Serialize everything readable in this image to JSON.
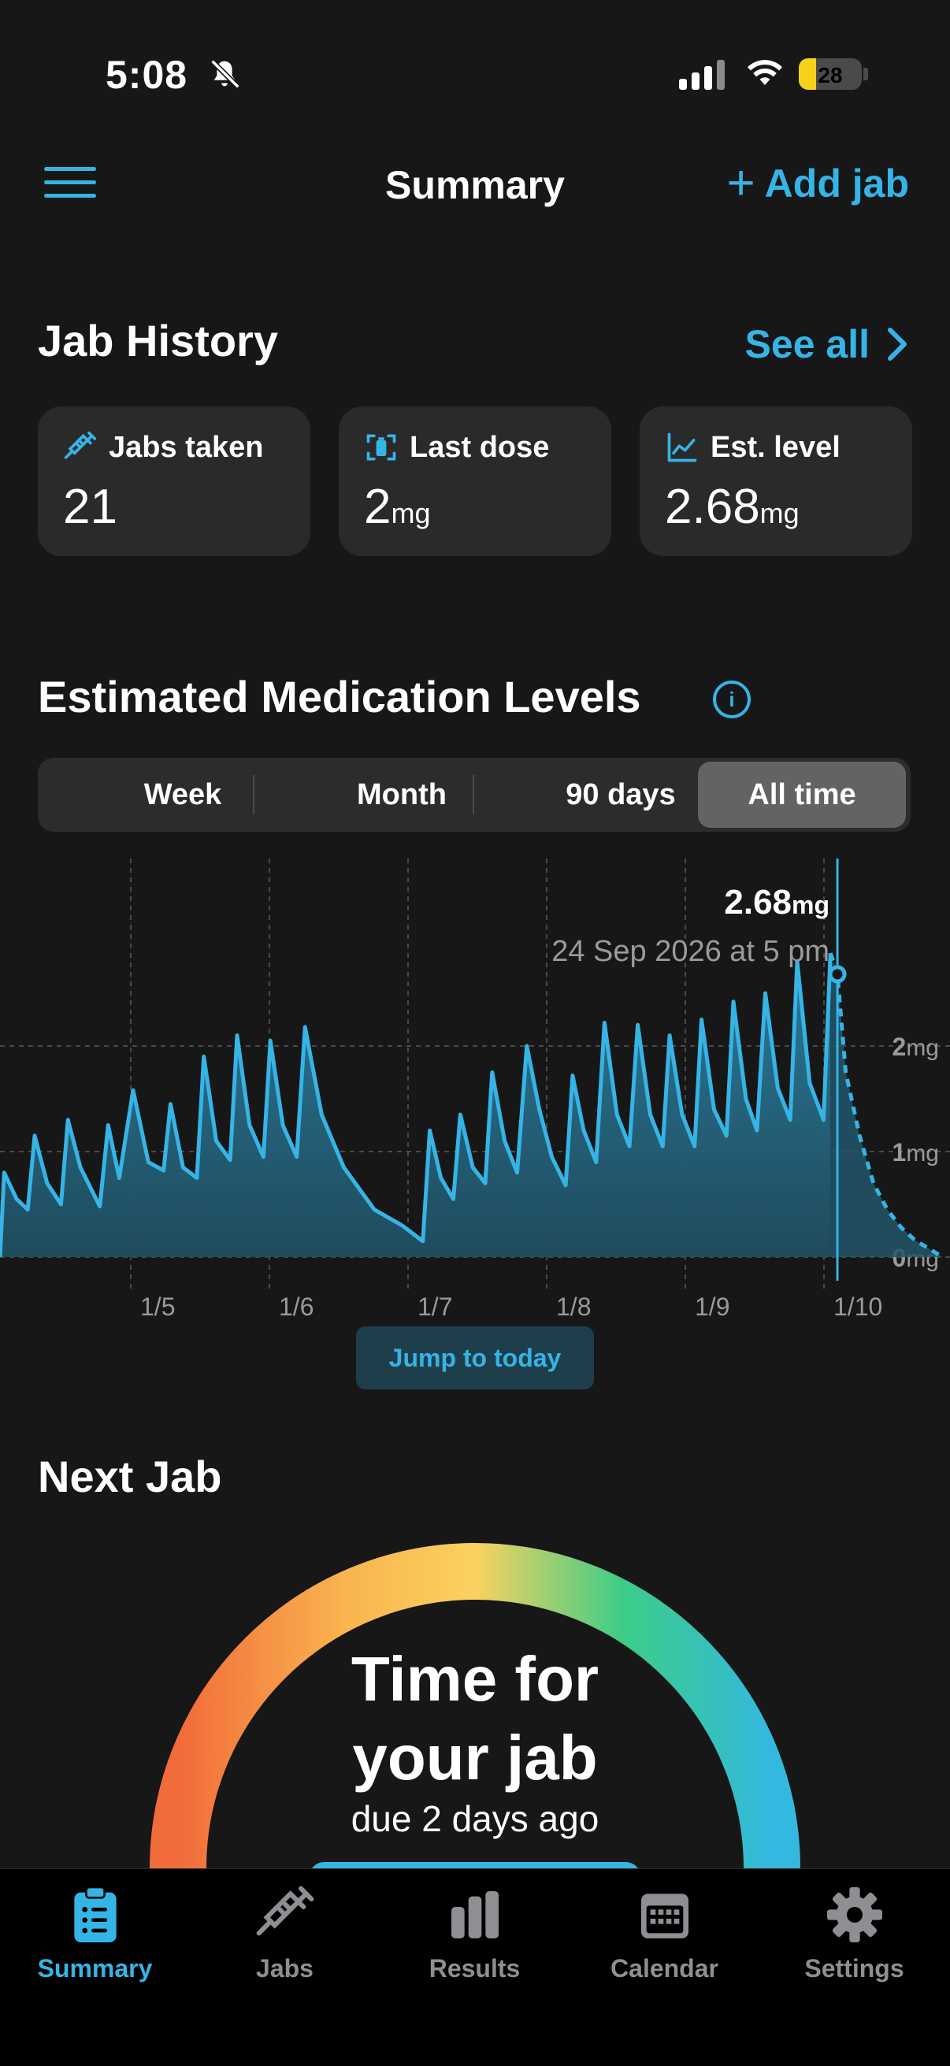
{
  "status_bar": {
    "time": "5:08",
    "battery": "28"
  },
  "nav": {
    "title": "Summary",
    "add_label": "Add jab"
  },
  "jab_history": {
    "title": "Jab History",
    "see_all": "See all",
    "cards": [
      {
        "label": "Jabs taken",
        "value": "21",
        "unit": ""
      },
      {
        "label": "Last dose",
        "value": "2",
        "unit": "mg"
      },
      {
        "label": "Est. level",
        "value": "2.68",
        "unit": "mg"
      }
    ]
  },
  "levels": {
    "title": "Estimated Medication Levels",
    "ranges": [
      "Week",
      "Month",
      "90 days",
      "All time"
    ],
    "selected_range": "All time",
    "jump_label": "Jump to today"
  },
  "chart_data": {
    "type": "area",
    "tooltip": {
      "value": "2.68",
      "unit": "mg",
      "date": "24 Sep 2026 at 5 pm"
    },
    "x_ticks": [
      "1/5",
      "1/6",
      "1/7",
      "1/8",
      "1/9",
      "1/10"
    ],
    "y_ticks": [
      {
        "value": 2,
        "label": "2",
        "unit": "mg"
      },
      {
        "value": 1,
        "label": "1",
        "unit": "mg"
      },
      {
        "value": 0,
        "label": "0",
        "unit": "mg"
      }
    ],
    "ylim": [
      0,
      2.9
    ],
    "xlim": [
      0,
      6.8
    ],
    "series": [
      {
        "values": [
          [
            0,
            0
          ],
          [
            0.03,
            0.8
          ],
          [
            0.12,
            0.55
          ],
          [
            0.2,
            0.45
          ],
          [
            0.25,
            1.15
          ],
          [
            0.34,
            0.7
          ],
          [
            0.44,
            0.5
          ],
          [
            0.49,
            1.3
          ],
          [
            0.58,
            0.85
          ],
          [
            0.72,
            0.48
          ],
          [
            0.78,
            1.25
          ],
          [
            0.86,
            0.75
          ],
          [
            0.96,
            1.58
          ],
          [
            1.07,
            0.9
          ],
          [
            1.18,
            0.82
          ],
          [
            1.23,
            1.45
          ],
          [
            1.32,
            0.85
          ],
          [
            1.42,
            0.75
          ],
          [
            1.47,
            1.9
          ],
          [
            1.56,
            1.1
          ],
          [
            1.66,
            0.92
          ],
          [
            1.71,
            2.1
          ],
          [
            1.8,
            1.25
          ],
          [
            1.9,
            0.95
          ],
          [
            1.95,
            2.05
          ],
          [
            2.04,
            1.25
          ],
          [
            2.14,
            0.95
          ],
          [
            2.2,
            2.18
          ],
          [
            2.32,
            1.35
          ],
          [
            2.48,
            0.85
          ],
          [
            2.7,
            0.45
          ],
          [
            2.9,
            0.3
          ],
          [
            3.05,
            0.15
          ],
          [
            3.1,
            1.2
          ],
          [
            3.18,
            0.75
          ],
          [
            3.27,
            0.55
          ],
          [
            3.32,
            1.35
          ],
          [
            3.41,
            0.85
          ],
          [
            3.5,
            0.7
          ],
          [
            3.55,
            1.75
          ],
          [
            3.64,
            1.1
          ],
          [
            3.73,
            0.8
          ],
          [
            3.8,
            2.0
          ],
          [
            3.89,
            1.4
          ],
          [
            3.98,
            0.95
          ],
          [
            4.08,
            0.68
          ],
          [
            4.13,
            1.72
          ],
          [
            4.21,
            1.2
          ],
          [
            4.3,
            0.9
          ],
          [
            4.36,
            2.22
          ],
          [
            4.45,
            1.35
          ],
          [
            4.54,
            1.05
          ],
          [
            4.6,
            2.2
          ],
          [
            4.69,
            1.35
          ],
          [
            4.78,
            1.05
          ],
          [
            4.83,
            2.1
          ],
          [
            4.92,
            1.35
          ],
          [
            5.01,
            1.05
          ],
          [
            5.06,
            2.25
          ],
          [
            5.15,
            1.4
          ],
          [
            5.24,
            1.15
          ],
          [
            5.29,
            2.42
          ],
          [
            5.38,
            1.5
          ],
          [
            5.46,
            1.2
          ],
          [
            5.52,
            2.5
          ],
          [
            5.61,
            1.6
          ],
          [
            5.7,
            1.3
          ],
          [
            5.75,
            2.8
          ],
          [
            5.84,
            1.65
          ],
          [
            5.94,
            1.3
          ],
          [
            5.99,
            2.88
          ]
        ]
      },
      {
        "name": "projected",
        "values": [
          [
            5.99,
            2.88
          ],
          [
            6.04,
            2.68
          ],
          [
            6.1,
            1.75
          ],
          [
            6.2,
            1.15
          ],
          [
            6.3,
            0.7
          ],
          [
            6.4,
            0.45
          ],
          [
            6.5,
            0.28
          ],
          [
            6.6,
            0.16
          ],
          [
            6.7,
            0.08
          ],
          [
            6.8,
            0.0
          ]
        ]
      }
    ]
  },
  "next_jab": {
    "title": "Next Jab",
    "status_line1": "Time for",
    "status_line2": "your jab",
    "due": "due 2 days ago"
  },
  "tabs": [
    {
      "label": "Summary",
      "icon": "clipboard-icon",
      "active": true
    },
    {
      "label": "Jabs",
      "icon": "syringe-icon",
      "active": false
    },
    {
      "label": "Results",
      "icon": "bar-chart-icon",
      "active": false
    },
    {
      "label": "Calendar",
      "icon": "calendar-icon",
      "active": false
    },
    {
      "label": "Settings",
      "icon": "gear-icon",
      "active": false
    }
  ],
  "colors": {
    "accent": "#35b4e6",
    "background": "#171717",
    "card": "#2a2a2a"
  }
}
